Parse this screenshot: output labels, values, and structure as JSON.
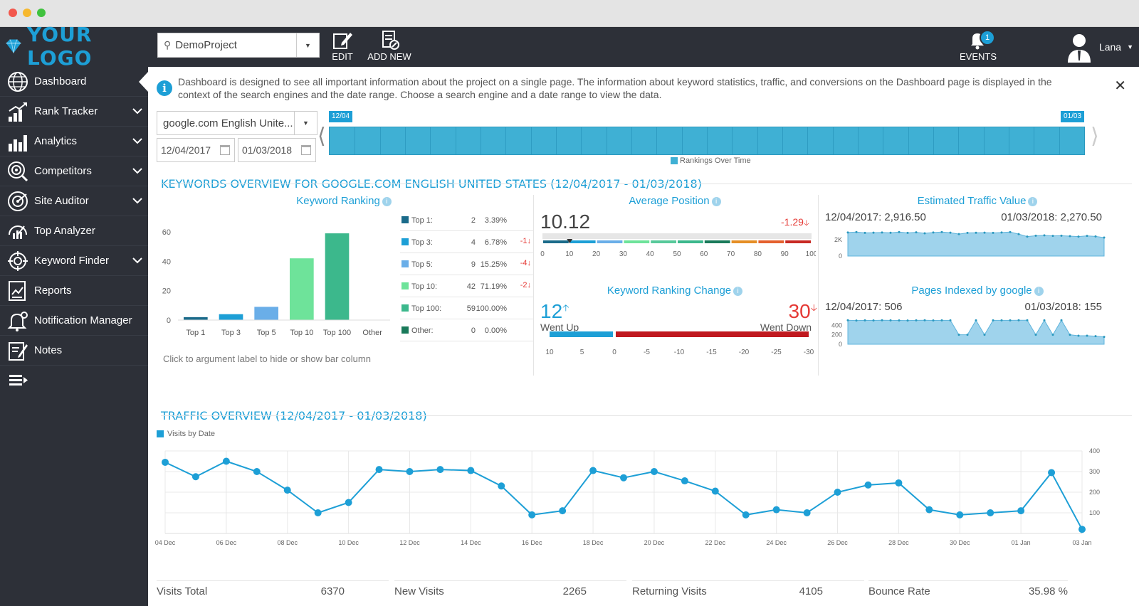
{
  "colors": {
    "accent": "#1d9fd6",
    "sidebar": "#2d3038",
    "red": "#e53935",
    "teal": "#3cb88c"
  },
  "header": {
    "logo": "YOUR LOGO",
    "project": "DemoProject",
    "edit": "EDIT",
    "add_new": "ADD NEW",
    "events": "EVENTS",
    "events_count": "1",
    "user": "Lana"
  },
  "sidebar": {
    "items": [
      {
        "label": "Dashboard",
        "icon": "globe-icon"
      },
      {
        "label": "Rank Tracker",
        "icon": "rank-chart-icon"
      },
      {
        "label": "Analytics",
        "icon": "analytics-icon"
      },
      {
        "label": "Competitors",
        "icon": "target-icon"
      },
      {
        "label": "Site Auditor",
        "icon": "radar-icon"
      },
      {
        "label": "Top Analyzer",
        "icon": "analyzer-icon"
      },
      {
        "label": "Keyword Finder",
        "icon": "keyword-icon"
      },
      {
        "label": "Reports",
        "icon": "report-icon"
      },
      {
        "label": "Notification Manager",
        "icon": "bell-icon"
      },
      {
        "label": "Notes",
        "icon": "notes-icon"
      }
    ]
  },
  "info": "Dashboard is designed to see all important information about the project on a single page. The information about keyword statistics, traffic, and conversions on the Dashboard page is displayed in the context of the search engines and the date range. Choose a search engine and a date range to view the data.",
  "filters": {
    "engine": "google.com English Unite...",
    "from": "12/04/2017",
    "to": "01/03/2018"
  },
  "timeline": {
    "start": "12/04",
    "end": "01/03",
    "legend": "Rankings Over Time"
  },
  "keywords": {
    "title": "KEYWORDS OVERVIEW FOR GOOGLE.COM ENGLISH UNITED STATES (12/04/2017 - 01/03/2018)",
    "ranking_title": "Keyword Ranking",
    "hint": "Click to argument label to hide or show bar column",
    "table": [
      {
        "label": "Top 1:",
        "count": "2",
        "pct": "3.39%",
        "delta": "",
        "color": "#1b6b8a"
      },
      {
        "label": "Top 3:",
        "count": "4",
        "pct": "6.78%",
        "delta": "-1",
        "color": "#1d9fd6"
      },
      {
        "label": "Top 5:",
        "count": "9",
        "pct": "15.25%",
        "delta": "-4",
        "color": "#6aaee8"
      },
      {
        "label": "Top 10:",
        "count": "42",
        "pct": "71.19%",
        "delta": "-2",
        "color": "#6ee39a"
      },
      {
        "label": "Top 100:",
        "count": "59",
        "pct": "100.00%",
        "delta": "",
        "color": "#3cb88c"
      },
      {
        "label": "Other:",
        "count": "0",
        "pct": "0.00%",
        "delta": "",
        "color": "#1a7a5a"
      }
    ],
    "avg_title": "Average Position",
    "avg_value": "10.12",
    "avg_delta": "-1.29",
    "avg_ticks": [
      "0",
      "10",
      "20",
      "30",
      "40",
      "50",
      "60",
      "70",
      "80",
      "90",
      "100"
    ],
    "change_title": "Keyword Ranking Change",
    "went_up": "12",
    "went_up_label": "Went Up",
    "went_down": "30",
    "went_down_label": "Went Down",
    "change_ticks": [
      "10",
      "5",
      "0",
      "-5",
      "-10",
      "-15",
      "-20",
      "-25",
      "-30"
    ],
    "traffic_value_title": "Estimated Traffic Value",
    "tv_start_date": "12/04/2017:",
    "tv_start": "2,916.50",
    "tv_end_date": "01/03/2018:",
    "tv_end": "2,270.50",
    "tv_ticks": [
      "2K",
      "0"
    ],
    "pages_title": "Pages Indexed by google",
    "pi_start_date": "12/04/2017:",
    "pi_start": "506",
    "pi_end_date": "01/03/2018:",
    "pi_end": "155",
    "pi_ticks": [
      "400",
      "200",
      "0"
    ]
  },
  "traffic": {
    "title": "TRAFFIC OVERVIEW (12/04/2017 - 01/03/2018)",
    "legend": "Visits by Date",
    "stats": [
      {
        "label": "Visits Total",
        "value": "6370"
      },
      {
        "label": "New Visits",
        "value": "2265"
      },
      {
        "label": "Returning Visits",
        "value": "4105"
      },
      {
        "label": "Bounce Rate",
        "value": "35.98",
        "unit": "%"
      }
    ]
  },
  "chart_data": [
    {
      "type": "bar",
      "title": "Keyword Ranking",
      "categories": [
        "Top 1",
        "Top 3",
        "Top 5",
        "Top 10",
        "Top 100",
        "Other"
      ],
      "values": [
        2,
        4,
        9,
        42,
        59,
        0
      ],
      "ylim": [
        0,
        60
      ],
      "yticks": [
        "0",
        "20",
        "40",
        "60"
      ]
    },
    {
      "type": "line",
      "title": "Visits by Date",
      "x": [
        "04 Dec",
        "05 Dec",
        "06 Dec",
        "07 Dec",
        "08 Dec",
        "09 Dec",
        "10 Dec",
        "11 Dec",
        "12 Dec",
        "13 Dec",
        "14 Dec",
        "15 Dec",
        "16 Dec",
        "17 Dec",
        "18 Dec",
        "19 Dec",
        "20 Dec",
        "21 Dec",
        "22 Dec",
        "23 Dec",
        "24 Dec",
        "25 Dec",
        "26 Dec",
        "27 Dec",
        "28 Dec",
        "29 Dec",
        "30 Dec",
        "31 Dec",
        "01 Jan",
        "02 Jan",
        "03 Jan"
      ],
      "xticks": [
        "04 Dec",
        "06 Dec",
        "08 Dec",
        "10 Dec",
        "12 Dec",
        "14 Dec",
        "16 Dec",
        "18 Dec",
        "20 Dec",
        "22 Dec",
        "24 Dec",
        "26 Dec",
        "28 Dec",
        "30 Dec",
        "01 Jan",
        "03 Jan"
      ],
      "series": [
        {
          "name": "Visits by Date",
          "values": [
            345,
            275,
            350,
            300,
            210,
            100,
            150,
            310,
            300,
            310,
            305,
            230,
            90,
            110,
            305,
            270,
            300,
            255,
            205,
            90,
            115,
            100,
            200,
            235,
            245,
            115,
            90,
            100,
            110,
            295,
            20
          ]
        }
      ],
      "ylim": [
        0,
        400
      ],
      "yticks": [
        "400",
        "300",
        "200",
        "100"
      ]
    },
    {
      "type": "area",
      "title": "Estimated Traffic Value",
      "values": [
        2900,
        2950,
        2850,
        2880,
        2900,
        2870,
        2950,
        2850,
        2920,
        2800,
        2900,
        2950,
        2880,
        2700,
        2850,
        2870,
        2880,
        2850,
        2900,
        2950,
        2700,
        2400,
        2500,
        2550,
        2480,
        2500,
        2450,
        2400,
        2480,
        2420,
        2270
      ],
      "ylim": [
        0,
        3500
      ]
    },
    {
      "type": "area",
      "title": "Pages Indexed by google",
      "values": [
        506,
        500,
        505,
        502,
        506,
        505,
        502,
        500,
        505,
        506,
        503,
        505,
        505,
        200,
        200,
        505,
        200,
        505,
        505,
        505,
        506,
        506,
        200,
        505,
        200,
        506,
        200,
        180,
        180,
        170,
        155
      ],
      "ylim": [
        0,
        600
      ]
    }
  ]
}
